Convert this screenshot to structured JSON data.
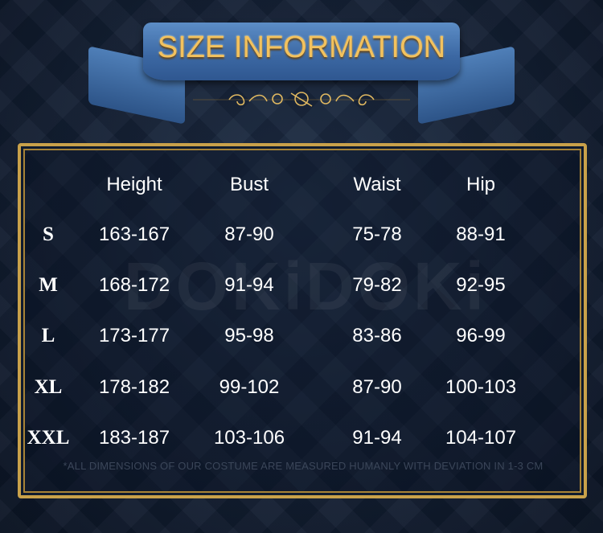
{
  "title": "SIZE INFORMATION",
  "watermark": "DOKiDOKi",
  "colors": {
    "title_gold": "#f3c25e",
    "ribbon_blue": "#3b67a2",
    "frame_gold": "#c9a14a",
    "background": "#0f1b2e"
  },
  "table": {
    "headers": [
      "",
      "Height",
      "Bust",
      "Waist",
      "Hip"
    ],
    "rows": [
      [
        "S",
        "163-167",
        "87-90",
        "75-78",
        "88-91"
      ],
      [
        "M",
        "168-172",
        "91-94",
        "79-82",
        "92-95"
      ],
      [
        "L",
        "173-177",
        "95-98",
        "83-86",
        "96-99"
      ],
      [
        "XL",
        "178-182",
        "99-102",
        "87-90",
        "100-103"
      ],
      [
        "XXL",
        "183-187",
        "103-106",
        "91-94",
        "104-107"
      ]
    ]
  },
  "note": "*ALL DIMENSIONS OF OUR COSTUME ARE MEASURED HUMANLY WITH DEVIATION IN 1-3 CM"
}
